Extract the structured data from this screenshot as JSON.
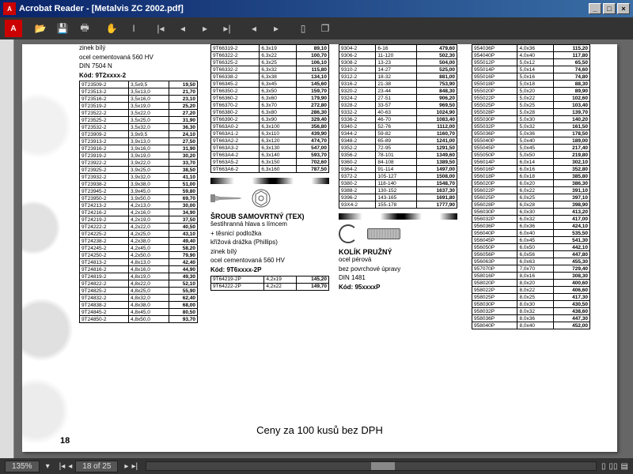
{
  "title": "Acrobat Reader - [Metalvis ZC 2002.pdf]",
  "status": {
    "zoom": "135%",
    "page": "18 of 25"
  },
  "footer_text": "Ceny za 100 kusů bez DPH",
  "page_number": "18",
  "col1_top": {
    "lines": [
      "zinek bílý",
      "ocel cementovaná 560 HV",
      "DIN 7504 N"
    ],
    "kod": "Kód: 9T2xxxx-2"
  },
  "tbl1": [
    [
      "9T23509-2",
      "3,5x9,5",
      "19,50"
    ],
    [
      "9T23513-2",
      "3,5x13,0",
      "21,70"
    ],
    [
      "9T23516-2",
      "3,5x16,0",
      "23,10"
    ],
    [
      "9T23519-2",
      "3,5x19,0",
      "25,20"
    ],
    [
      "9T23522-2",
      "3,5x22,0",
      "27,20"
    ],
    [
      "9T23525-2",
      "3,5x25,0",
      "31,90"
    ],
    [
      "9T23532-2",
      "3,5x32,0",
      "36,30"
    ],
    [
      "9T23909-2",
      "3,9x9,5",
      "24,10"
    ],
    [
      "9T23913-2",
      "3,9x13,0",
      "27,50"
    ],
    [
      "9T23916-2",
      "3,9x16,0",
      "31,90"
    ],
    [
      "9T23919-2",
      "3,9x19,0",
      "30,20"
    ],
    [
      "9T23922-2",
      "3,9x22,0",
      "33,70"
    ],
    [
      "9T23925-2",
      "3,9x25,0",
      "38,50"
    ],
    [
      "9T23932-2",
      "3,9x32,0",
      "41,10"
    ],
    [
      "9T23938-2",
      "3,9x38,0",
      "51,00"
    ],
    [
      "9T23945-2",
      "3,9x45,0",
      "59,80"
    ],
    [
      "9T23950-2",
      "3,9x50,0",
      "69,70"
    ],
    [
      "9T24213-2",
      "4,2x13,0",
      "30,00"
    ],
    [
      "9T24216-2",
      "4,2x16,0",
      "34,90"
    ],
    [
      "9T24219-2",
      "4,2x19,0",
      "37,50"
    ],
    [
      "9T24222-2",
      "4,2x22,0",
      "40,50"
    ],
    [
      "9T24225-2",
      "4,2x25,0",
      "43,10"
    ],
    [
      "9T24238-2",
      "4,2x38,0",
      "49,40"
    ],
    [
      "9T24245-2",
      "4,2x45,0",
      "58,20"
    ],
    [
      "9T24250-2",
      "4,2x50,0",
      "79,90"
    ],
    [
      "9T24813-2",
      "4,8x13,0",
      "42,40"
    ],
    [
      "9T24816-2",
      "4,8x16,0",
      "44,90"
    ],
    [
      "9T24819-2",
      "4,8x19,0",
      "49,30"
    ],
    [
      "9T24822-2",
      "4,8x22,0",
      "52,10"
    ],
    [
      "9T24825-2",
      "4,8x25,0",
      "55,90"
    ],
    [
      "9T24832-2",
      "4,8x32,0",
      "62,40"
    ],
    [
      "9T24838-2",
      "4,8x38,0",
      "68,00"
    ],
    [
      "9T24845-2",
      "4,8x45,0",
      "80,50"
    ],
    [
      "9T24850-2",
      "4,8x50,0",
      "93,70"
    ]
  ],
  "tbl2a": [
    [
      "9T66319-2",
      "6,3x19",
      "89,10"
    ],
    [
      "9T66322-2",
      "6,3x22",
      "100,70"
    ],
    [
      "9T66325-2",
      "6,3x25",
      "106,10"
    ],
    [
      "9T66332-2",
      "6,3x32",
      "115,80"
    ],
    [
      "9T66338-2",
      "6,3x38",
      "134,10"
    ],
    [
      "9T66345-2",
      "6,3x45",
      "145,60"
    ],
    [
      "9T66350-2",
      "6,3x50",
      "159,70"
    ],
    [
      "9T66360-2",
      "6,3x60",
      "179,90"
    ],
    [
      "9T66370-2",
      "6,3x70",
      "272,80"
    ],
    [
      "9T66380-2",
      "6,3x80",
      "286,30"
    ],
    [
      "9T66390-2",
      "6,3x90",
      "329,40"
    ],
    [
      "9T663A0-2",
      "6,3x100",
      "356,80"
    ],
    [
      "9T663A1-2",
      "6,3x110",
      "439,90"
    ],
    [
      "9T663A2-2",
      "6,3x120",
      "474,70"
    ],
    [
      "9T663A3-2",
      "6,3x130",
      "547,00"
    ],
    [
      "9T663A4-2",
      "6,3x140",
      "593,70"
    ],
    [
      "9T663A5-2",
      "6,3x150",
      "702,60"
    ],
    [
      "9T663A6-2",
      "6,3x160",
      "787,50"
    ]
  ],
  "section2": {
    "heading": "ŠROUB SAMOVRTNÝ (TEX)",
    "lines": [
      "šestihranná hlava s límcem",
      "+ těsnicí podložka",
      "křížová drážka (Phillips)",
      "zinek bílý",
      "ocel cementovaná 560 HV"
    ],
    "kod": "Kód: 9T6xxxx-2P"
  },
  "tbl2b": [
    [
      "9T64219-2P",
      "4,2x19",
      "145,20"
    ],
    [
      "9T64222-2P",
      "4,2x22",
      "149,70"
    ]
  ],
  "tbl3": [
    [
      "9304-2",
      "6-16",
      "479,60"
    ],
    [
      "9306-2",
      "11-120",
      "502,30"
    ],
    [
      "9308-2",
      "13-23",
      "504,00"
    ],
    [
      "9310-2",
      "14-27",
      "525,00"
    ],
    [
      "9312-2",
      "18-32",
      "881,00"
    ],
    [
      "9316-2",
      "21-38",
      "753,90"
    ],
    [
      "9320-2",
      "23-44",
      "848,30"
    ],
    [
      "9324-2",
      "27-51",
      "906,20"
    ],
    [
      "9328-2",
      "33-57",
      "969,50"
    ],
    [
      "9332-2",
      "40-63",
      "1024,90"
    ],
    [
      "9336-2",
      "46-70",
      "1083,40"
    ],
    [
      "9340-2",
      "52-76",
      "1112,00"
    ],
    [
      "9344-2",
      "59-82",
      "1160,70"
    ],
    [
      "9348-2",
      "65-89",
      "1241,00"
    ],
    [
      "9352-2",
      "72-95",
      "1291,50"
    ],
    [
      "9356-2",
      "78-101",
      "1349,60"
    ],
    [
      "9360-2",
      "84-108",
      "1389,50"
    ],
    [
      "9364-2",
      "91-114",
      "1497,00"
    ],
    [
      "9372-2",
      "105-127",
      "1508,00"
    ],
    [
      "9380-2",
      "118-140",
      "1548,70"
    ],
    [
      "9388-2",
      "130-152",
      "1637,30"
    ],
    [
      "9396-2",
      "143-165",
      "1691,80"
    ],
    [
      "93X4-2",
      "155-178",
      "1777,90"
    ]
  ],
  "section3": {
    "heading": "KOLÍK PRUŽNÝ",
    "lines": [
      "ocel pérová",
      "bez povrchové úpravy",
      "DIN 1481"
    ],
    "kod": "Kód: 95xxxxP"
  },
  "tbl4": [
    [
      "954036P",
      "4,0x36",
      "115,20"
    ],
    [
      "954040P",
      "4,0x40",
      "117,80"
    ],
    [
      "955012P",
      "5,0x12",
      "65,50"
    ],
    [
      "955014P",
      "5,0x14",
      "74,60"
    ],
    [
      "955016P",
      "5,0x16",
      "74,80"
    ],
    [
      "955018P",
      "5,0x18",
      "88,30"
    ],
    [
      "955020P",
      "5,0x20",
      "89,90"
    ],
    [
      "955022P",
      "5,0x22",
      "102,60"
    ],
    [
      "955025P",
      "5,0x25",
      "103,40"
    ],
    [
      "955028P",
      "5,0x28",
      "139,70"
    ],
    [
      "955030P",
      "5,0x30",
      "140,20"
    ],
    [
      "955032P",
      "5,0x32",
      "161,50"
    ],
    [
      "955036P",
      "5,0x36",
      "178,50"
    ],
    [
      "955040P",
      "5,0x40",
      "189,00"
    ],
    [
      "955045P",
      "5,0x45",
      "217,40"
    ],
    [
      "955050P",
      "5,0x50",
      "219,80"
    ],
    [
      "956014P",
      "6,0x14",
      "302,10"
    ],
    [
      "956016P",
      "6,0x16",
      "352,80"
    ],
    [
      "956018P",
      "6,0x18",
      "385,80"
    ],
    [
      "956020P",
      "6,0x20",
      "386,30"
    ],
    [
      "956022P",
      "6,0x22",
      "391,10"
    ],
    [
      "956025P",
      "6,0x25",
      "397,10"
    ],
    [
      "956028P",
      "6,0x28",
      "398,90"
    ],
    [
      "956030P",
      "6,0x30",
      "413,20"
    ],
    [
      "956032P",
      "6,0x32",
      "417,00"
    ],
    [
      "956036P",
      "6,0x36",
      "424,10"
    ],
    [
      "956040P",
      "6,0x40",
      "535,50"
    ],
    [
      "956045P",
      "6,0x45",
      "541,30"
    ],
    [
      "956050P",
      "6,0x50",
      "442,10"
    ],
    [
      "956056P",
      "6,0x56",
      "447,80"
    ],
    [
      "956063P",
      "6,0x63",
      "455,30"
    ],
    [
      "957070P",
      "7,0x70",
      "729,40"
    ],
    [
      "958016P",
      "8,0x16",
      "308,30"
    ],
    [
      "958020P",
      "8,0x20",
      "400,60"
    ],
    [
      "958022P",
      "8,0x22",
      "406,60"
    ],
    [
      "958025P",
      "8,0x25",
      "417,30"
    ],
    [
      "958030P",
      "8,0x30",
      "430,50"
    ],
    [
      "958032P",
      "8,0x32",
      "438,60"
    ],
    [
      "958036P",
      "8,0x36",
      "447,30"
    ],
    [
      "958040P",
      "8,0x40",
      "452,00"
    ]
  ]
}
